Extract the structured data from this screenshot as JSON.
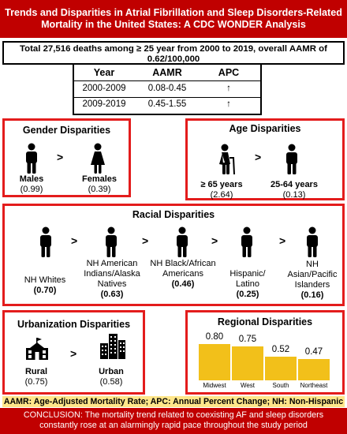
{
  "header": {
    "line1": "Trends and Disparities in Atrial Fibrillation and Sleep Disorders-Related",
    "line2": "Mortality in the United States: A CDC WONDER Analysis"
  },
  "summary": {
    "line1": "Total 27,516 deaths among ≥ 25 year from 2000 to 2019, overall AAMR of",
    "line2": "0.62/100,000"
  },
  "table": {
    "headers": [
      "Year",
      "AAMR",
      "APC"
    ],
    "rows": [
      {
        "year": "2000-2009",
        "aamr": "0.08-0.45",
        "apc": "↑"
      },
      {
        "year": "2009-2019",
        "aamr": "0.45-1.55",
        "apc": "↑"
      }
    ]
  },
  "gender": {
    "title": "Gender Disparities",
    "gt": ">",
    "males": {
      "label": "Males",
      "value": "(0.99)"
    },
    "females": {
      "label": "Females",
      "value": "(0.39)"
    }
  },
  "age": {
    "title": "Age Disparities",
    "gt": ">",
    "older": {
      "label": "≥ 65 years",
      "value": "(2.64)"
    },
    "younger": {
      "label": "25-64 years",
      "value": "(0.13)"
    }
  },
  "racial": {
    "title": "Racial Disparities",
    "gt": ">",
    "groups": [
      {
        "label": [
          "NH Whites"
        ],
        "value": "(0.70)"
      },
      {
        "label": [
          "NH American",
          "Indians/Alaska",
          "Natives"
        ],
        "value": "(0.63)"
      },
      {
        "label": [
          "NH Black/African",
          "Americans"
        ],
        "value": "(0.46)"
      },
      {
        "label": [
          "Hispanic/",
          "Latino"
        ],
        "value": "(0.25)"
      },
      {
        "label": [
          "NH",
          "Asian/Pacific",
          "Islanders"
        ],
        "value": "(0.16)"
      }
    ]
  },
  "urban": {
    "title": "Urbanization Disparities",
    "gt": ">",
    "rural": {
      "label": "Rural",
      "value": "(0.75)"
    },
    "urban": {
      "label": "Urban",
      "value": "(0.58)"
    }
  },
  "regional": {
    "title": "Regional Disparities",
    "bar_color": "#f2c01a"
  },
  "chart_data": {
    "type": "bar",
    "title": "Regional Disparities",
    "categories": [
      "Midwest",
      "West",
      "South",
      "Northeast"
    ],
    "values": [
      0.8,
      0.75,
      0.52,
      0.47
    ],
    "value_labels": [
      "0.80",
      "0.75",
      "0.52",
      "0.47"
    ],
    "ylim": [
      0,
      0.8
    ],
    "grid": false
  },
  "abbreviations": "AAMR: Age-Adjusted Mortality Rate; APC: Annual Percent Change; NH: Non-Hispanic",
  "conclusion": {
    "line1": "CONCLUSION: The mortality trend related to coexisting AF and sleep disorders",
    "line2": "constantly rose at an alarmingly rapid pace throughout the study period"
  },
  "colors": {
    "header_bg": "#c00000",
    "box_border": "#e31c1c",
    "abbrev_bg": "#ffe68a"
  },
  "icons": [
    "person-icon",
    "female-person-icon",
    "elderly-person-icon",
    "school-building-icon",
    "city-buildings-icon",
    "up-arrow-icon"
  ]
}
